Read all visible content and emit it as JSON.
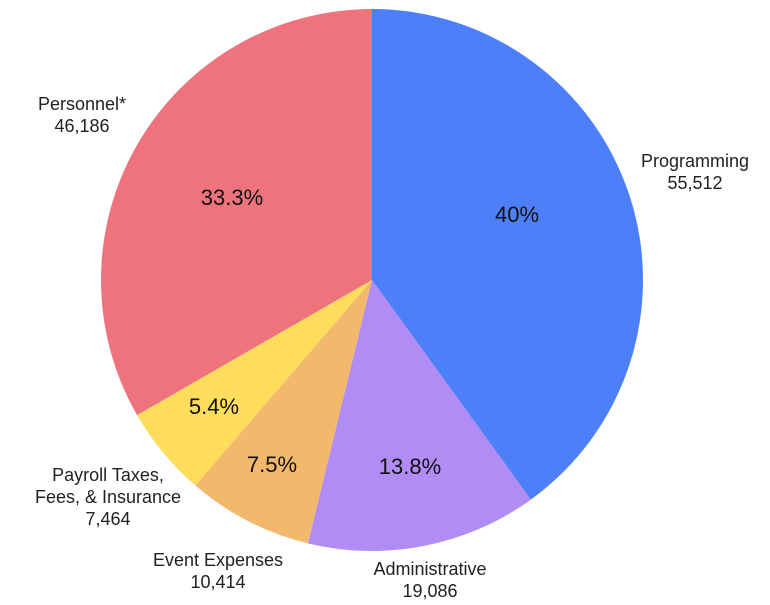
{
  "chart_data": {
    "type": "pie",
    "categories": [
      "Programming",
      "Administrative",
      "Event Expenses",
      "Payroll Taxes,\nFees, & Insurance",
      "Personnel*"
    ],
    "values": [
      55512,
      19086,
      10414,
      7464,
      46186
    ],
    "value_labels": [
      "55,512",
      "19,086",
      "10,414",
      "7,464",
      "46,186"
    ],
    "percent_labels": [
      "40%",
      "13.8%",
      "7.5%",
      "5.4%",
      "33.3%"
    ],
    "colors": [
      "#4c7ff8",
      "#b08cf4",
      "#f2b96c",
      "#fedc5c",
      "#ef737c"
    ]
  }
}
